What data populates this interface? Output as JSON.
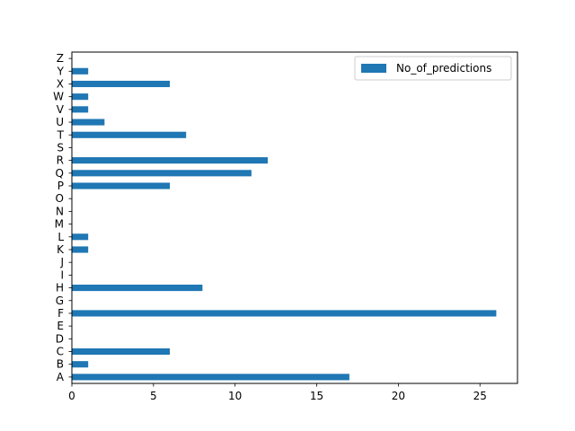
{
  "chart_data": {
    "type": "bar",
    "orientation": "horizontal",
    "categories": [
      "A",
      "B",
      "C",
      "D",
      "E",
      "F",
      "G",
      "H",
      "I",
      "J",
      "K",
      "L",
      "M",
      "N",
      "O",
      "P",
      "Q",
      "R",
      "S",
      "T",
      "U",
      "V",
      "W",
      "X",
      "Y",
      "Z"
    ],
    "series": [
      {
        "name": "No_of_predictions",
        "values": [
          17,
          1,
          6,
          0,
          0,
          26,
          0,
          8,
          0,
          0,
          1,
          1,
          0,
          0,
          0,
          6,
          11,
          12,
          0,
          7,
          2,
          1,
          1,
          6,
          1,
          0
        ],
        "color": "#1f77b4"
      }
    ],
    "xlim": [
      0,
      27.3
    ],
    "xticks": [
      0,
      5,
      10,
      15,
      20,
      25
    ],
    "xlabel": "",
    "ylabel": "",
    "title": "",
    "grid": false,
    "legend_position": "top-right"
  }
}
